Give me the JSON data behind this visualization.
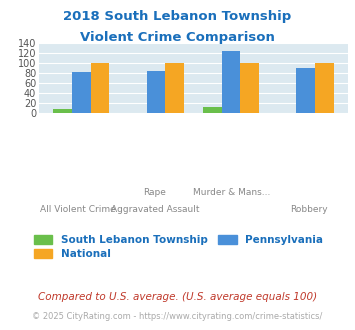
{
  "title_line1": "2018 South Lebanon Township",
  "title_line2": "Violent Crime Comparison",
  "title_color": "#1a6fbb",
  "south_lebanon": [
    8,
    0,
    13,
    0
  ],
  "national": [
    100,
    100,
    100,
    100
  ],
  "pennsylvania": [
    81,
    83,
    124,
    90
  ],
  "south_lebanon_color": "#6abf4b",
  "national_color": "#f5a623",
  "pennsylvania_color": "#4a90d9",
  "ylim": [
    0,
    140
  ],
  "yticks": [
    0,
    20,
    40,
    60,
    80,
    100,
    120,
    140
  ],
  "plot_bg": "#dce9f0",
  "label_top": [
    "",
    "Rape",
    "Murder & Mans...",
    ""
  ],
  "label_bottom": [
    "All Violent Crime",
    "Aggravated Assault",
    "",
    "Robbery"
  ],
  "footnote1": "Compared to U.S. average. (U.S. average equals 100)",
  "footnote2": "© 2025 CityRating.com - https://www.cityrating.com/crime-statistics/",
  "footnote1_color": "#c0392b",
  "footnote2_color": "#aaaaaa",
  "legend_labels": [
    "South Lebanon Township",
    "National",
    "Pennsylvania"
  ],
  "bar_width": 0.25
}
